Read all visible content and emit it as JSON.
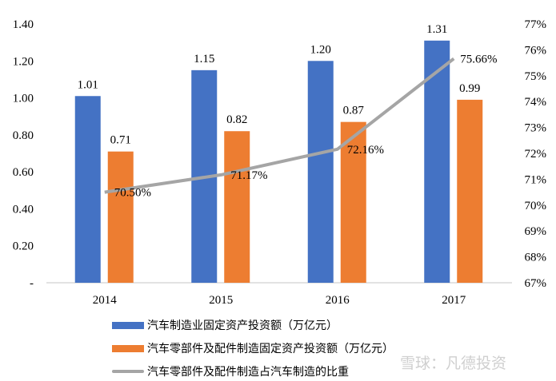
{
  "chart_data": {
    "type": "bar+line",
    "categories": [
      "2014",
      "2015",
      "2016",
      "2017"
    ],
    "series": [
      {
        "name": "汽车制造业固定资产投资额（万亿元）",
        "type": "bar",
        "axis": "left",
        "color": "#4472C4",
        "values": [
          1.01,
          1.15,
          1.2,
          1.31
        ],
        "labels": [
          "1.01",
          "1.15",
          "1.20",
          "1.31"
        ]
      },
      {
        "name": "汽车零部件及配件制造固定资产投资额（万亿元）",
        "type": "bar",
        "axis": "left",
        "color": "#ED7D31",
        "values": [
          0.71,
          0.82,
          0.87,
          0.99
        ],
        "labels": [
          "0.71",
          "0.82",
          "0.87",
          "0.99"
        ]
      },
      {
        "name": "汽车零部件及配件制造占汽车制造的比重",
        "type": "line",
        "axis": "right",
        "color": "#A5A5A5",
        "values": [
          70.5,
          71.17,
          72.16,
          75.66
        ],
        "labels": [
          "70.50%",
          "71.17%",
          "72.16%",
          "75.66%"
        ]
      }
    ],
    "left_axis": {
      "range": [
        0,
        1.4
      ],
      "ticks": [
        "-",
        "0.20",
        "0.40",
        "0.60",
        "0.80",
        "1.00",
        "1.20",
        "1.40"
      ]
    },
    "right_axis": {
      "range": [
        67,
        77
      ],
      "ticks": [
        "67%",
        "68%",
        "69%",
        "70%",
        "71%",
        "72%",
        "73%",
        "74%",
        "75%",
        "76%",
        "77%"
      ]
    },
    "legend_position": "bottom",
    "grid": false
  },
  "watermark": "雪球：凡德投资"
}
